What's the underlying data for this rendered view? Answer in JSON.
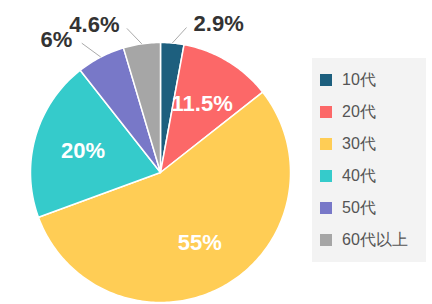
{
  "chart_data": {
    "type": "pie",
    "categories": [
      "10代",
      "20代",
      "30代",
      "40代",
      "50代",
      "60代以上"
    ],
    "values": [
      2.9,
      11.5,
      55,
      20,
      6,
      4.6
    ],
    "value_labels": [
      "2.9%",
      "11.5%",
      "55%",
      "20%",
      "6%",
      "4.6%"
    ],
    "colors": [
      "#1d5f7e",
      "#fc6868",
      "#ffcd55",
      "#35cbcb",
      "#7878c8",
      "#a6a6a6"
    ],
    "data_labels": true,
    "legend": "right"
  }
}
